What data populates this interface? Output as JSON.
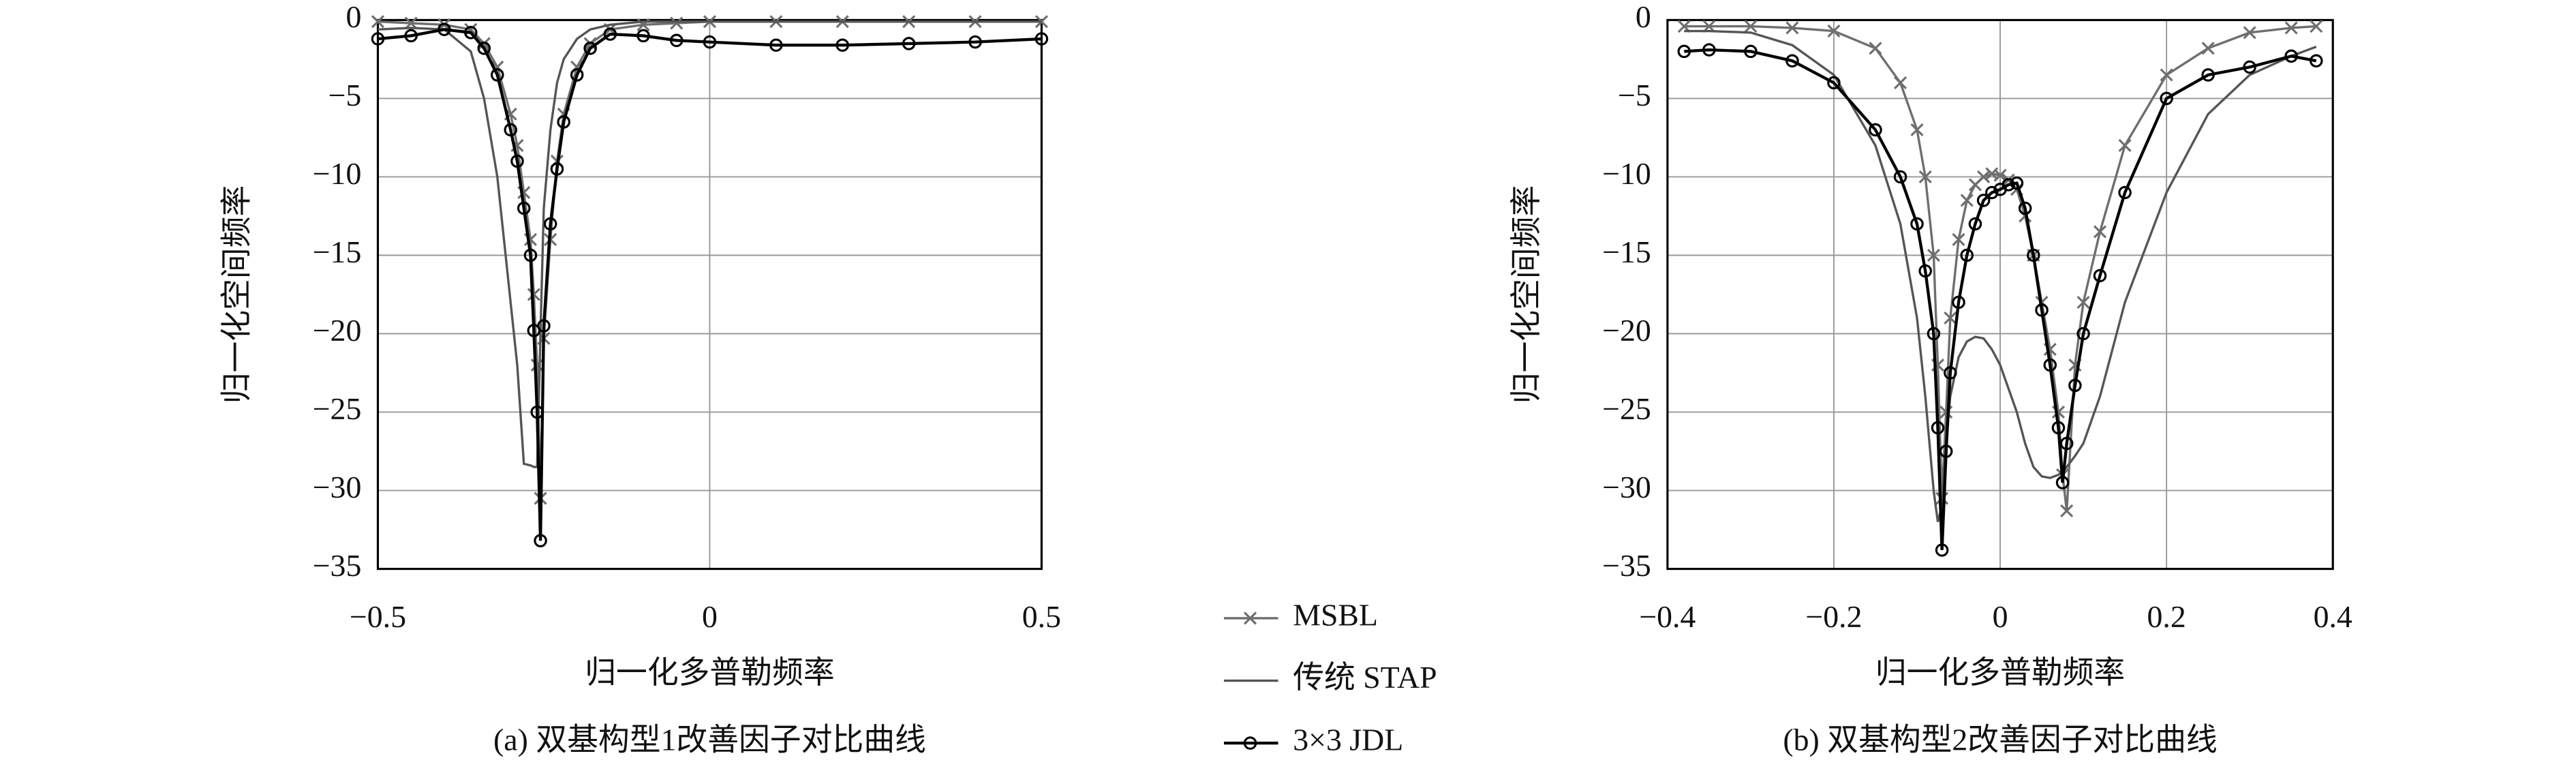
{
  "chart_data": [
    {
      "type": "line",
      "caption": "(a) 双基构型1改善因子对比曲线",
      "x_label": "归一化多普勒频率",
      "y_label": "归一化空间频率",
      "x": [
        -0.5,
        -0.45,
        -0.4,
        -0.36,
        -0.34,
        -0.32,
        -0.3,
        -0.29,
        -0.28,
        -0.27,
        -0.265,
        -0.26,
        -0.255,
        -0.25,
        -0.24,
        -0.23,
        -0.22,
        -0.2,
        -0.18,
        -0.15,
        -0.1,
        -0.05,
        0,
        0.1,
        0.2,
        0.3,
        0.4,
        0.5
      ],
      "xlim": [
        -0.5,
        0.5
      ],
      "ylim": [
        -35,
        0
      ],
      "xticks": [
        {
          "value": -0.5,
          "label": "−0.5"
        },
        0,
        0.5
      ],
      "yticks": [
        0,
        {
          "value": -5,
          "label": "−5"
        },
        {
          "value": -10,
          "label": "−10"
        },
        {
          "value": -15,
          "label": "−15"
        },
        {
          "value": -20,
          "label": "−20"
        },
        {
          "value": -25,
          "label": "−25"
        },
        {
          "value": -30,
          "label": "−30"
        },
        {
          "value": -35,
          "label": "−35"
        }
      ],
      "grid": true,
      "series": [
        {
          "name": "MSBL",
          "color": "#6e6e6e",
          "marker": "x",
          "values": [
            -0.1,
            -0.2,
            -0.3,
            -0.6,
            -1.5,
            -3,
            -6,
            -8,
            -11,
            -14,
            -17.5,
            -22,
            -30.5,
            -20.3,
            -14,
            -9,
            -6,
            -3,
            -1.5,
            -0.6,
            -0.3,
            -0.2,
            -0.1,
            -0.1,
            -0.1,
            -0.1,
            -0.1,
            -0.1
          ]
        },
        {
          "name": "传统 STAP",
          "color": "#555555",
          "marker": "none",
          "values": [
            -0.6,
            -0.5,
            -0.6,
            -2,
            -5,
            -10,
            -18,
            -22,
            -28.3,
            -28.4,
            -28.5,
            -28.5,
            -20,
            -12,
            -7,
            -4,
            -2.5,
            -1.2,
            -0.6,
            -0.3,
            -0.1,
            -0.1,
            -0.1,
            -0.1,
            -0.1,
            -0.1,
            -0.1,
            -0.1
          ]
        },
        {
          "name": "3×3 JDL",
          "color": "#000000",
          "marker": "circle",
          "values": [
            -1.2,
            -1,
            -0.6,
            -0.8,
            -1.8,
            -3.5,
            -7,
            -9,
            -12,
            -15,
            -19.8,
            -25,
            -33.2,
            -19.5,
            -13,
            -9.5,
            -6.5,
            -3.5,
            -1.8,
            -0.9,
            -1,
            -1.3,
            -1.4,
            -1.6,
            -1.6,
            -1.5,
            -1.4,
            -1.2
          ]
        }
      ]
    },
    {
      "type": "line",
      "caption": "(b) 双基构型2改善因子对比曲线",
      "x_label": "归一化多普勒频率",
      "y_label": "归一化空间频率",
      "x": [
        -0.38,
        -0.35,
        -0.3,
        -0.25,
        -0.2,
        -0.15,
        -0.12,
        -0.1,
        -0.09,
        -0.08,
        -0.075,
        -0.07,
        -0.065,
        -0.06,
        -0.05,
        -0.04,
        -0.03,
        -0.02,
        -0.01,
        0,
        0.01,
        0.02,
        0.03,
        0.04,
        0.05,
        0.06,
        0.07,
        0.075,
        0.08,
        0.09,
        0.1,
        0.12,
        0.15,
        0.2,
        0.25,
        0.3,
        0.35,
        0.38
      ],
      "xlim": [
        -0.4,
        0.4
      ],
      "ylim": [
        -35,
        0
      ],
      "xticks": [
        {
          "value": -0.4,
          "label": "−0.4"
        },
        {
          "value": -0.2,
          "label": "−0.2"
        },
        0,
        0.2,
        0.4
      ],
      "yticks": [
        0,
        {
          "value": -5,
          "label": "−5"
        },
        {
          "value": -10,
          "label": "−10"
        },
        {
          "value": -15,
          "label": "−15"
        },
        {
          "value": -20,
          "label": "−20"
        },
        {
          "value": -25,
          "label": "−25"
        },
        {
          "value": -30,
          "label": "−30"
        },
        {
          "value": -35,
          "label": "−35"
        }
      ],
      "grid": true,
      "series": [
        {
          "name": "MSBL",
          "color": "#6e6e6e",
          "marker": "x",
          "values": [
            -0.4,
            -0.4,
            -0.4,
            -0.5,
            -0.7,
            -1.8,
            -4,
            -7,
            -10,
            -15,
            -22,
            -30.5,
            -25,
            -19,
            -14,
            -11.5,
            -10.5,
            -10,
            -9.8,
            -9.9,
            -10.2,
            -10.8,
            -12.5,
            -15,
            -18,
            -21,
            -25,
            -29,
            -31.3,
            -22,
            -18,
            -13.5,
            -8,
            -3.5,
            -1.8,
            -0.8,
            -0.5,
            -0.4
          ]
        },
        {
          "name": "传统 STAP",
          "color": "#555555",
          "marker": "none",
          "values": [
            -0.7,
            -0.7,
            -0.8,
            -1.6,
            -3.5,
            -8,
            -13,
            -19,
            -24,
            -30,
            -32,
            -31,
            -27,
            -24,
            -21.5,
            -20.5,
            -20.2,
            -20.3,
            -21,
            -22,
            -23.5,
            -25,
            -27,
            -28.5,
            -29.1,
            -29.2,
            -29,
            -28.8,
            -28.5,
            -27.8,
            -27,
            -24,
            -18,
            -11,
            -6,
            -3.5,
            -2.3,
            -1.7
          ]
        },
        {
          "name": "3×3 JDL",
          "color": "#000000",
          "marker": "circle",
          "values": [
            -2,
            -1.9,
            -2,
            -2.6,
            -4,
            -7,
            -10,
            -13,
            -16,
            -20,
            -26,
            -33.8,
            -27.5,
            -22.5,
            -18,
            -15,
            -13,
            -11.5,
            -11,
            -10.8,
            -10.5,
            -10.4,
            -12,
            -15,
            -18.5,
            -22,
            -26,
            -29.5,
            -27,
            -23.3,
            -20,
            -16.3,
            -11,
            -5,
            -3.5,
            -3,
            -2.3,
            -2.6
          ]
        }
      ]
    }
  ]
}
